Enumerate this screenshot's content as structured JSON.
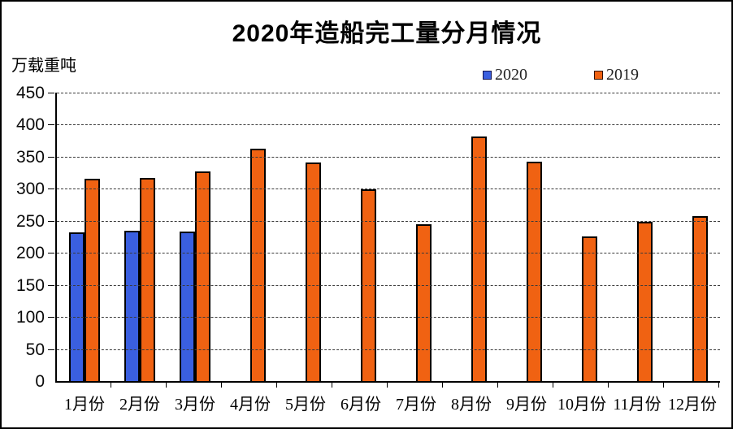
{
  "title": "2020年造船完工量分月情况",
  "y_axis_unit": "万载重吨",
  "legend": [
    {
      "label": "2020",
      "color": "#3A5FE0",
      "border": "#141450"
    },
    {
      "label": "2019",
      "color": "#F06212",
      "border": "#301000"
    }
  ],
  "chart_data": {
    "type": "bar",
    "title": "2020年造船完工量分月情况",
    "ylabel": "万载重吨",
    "categories": [
      "1月份",
      "2月份",
      "3月份",
      "4月份",
      "5月份",
      "6月份",
      "7月份",
      "8月份",
      "9月份",
      "10月份",
      "11月份",
      "12月份"
    ],
    "series": [
      {
        "name": "2020",
        "color": "#3A5FE0",
        "values": [
          232,
          234,
          233,
          null,
          null,
          null,
          null,
          null,
          null,
          null,
          null,
          null
        ]
      },
      {
        "name": "2019",
        "color": "#F06212",
        "values": [
          316,
          317,
          327,
          362,
          341,
          299,
          245,
          382,
          342,
          226,
          249,
          257
        ]
      }
    ],
    "ylim": [
      0,
      450
    ],
    "y_ticks": [
      0,
      50,
      100,
      150,
      200,
      250,
      300,
      350,
      400,
      450
    ],
    "grid": true,
    "grid_style": "dashed",
    "legend_position": "top-right",
    "bar_border_color": "#000000"
  }
}
